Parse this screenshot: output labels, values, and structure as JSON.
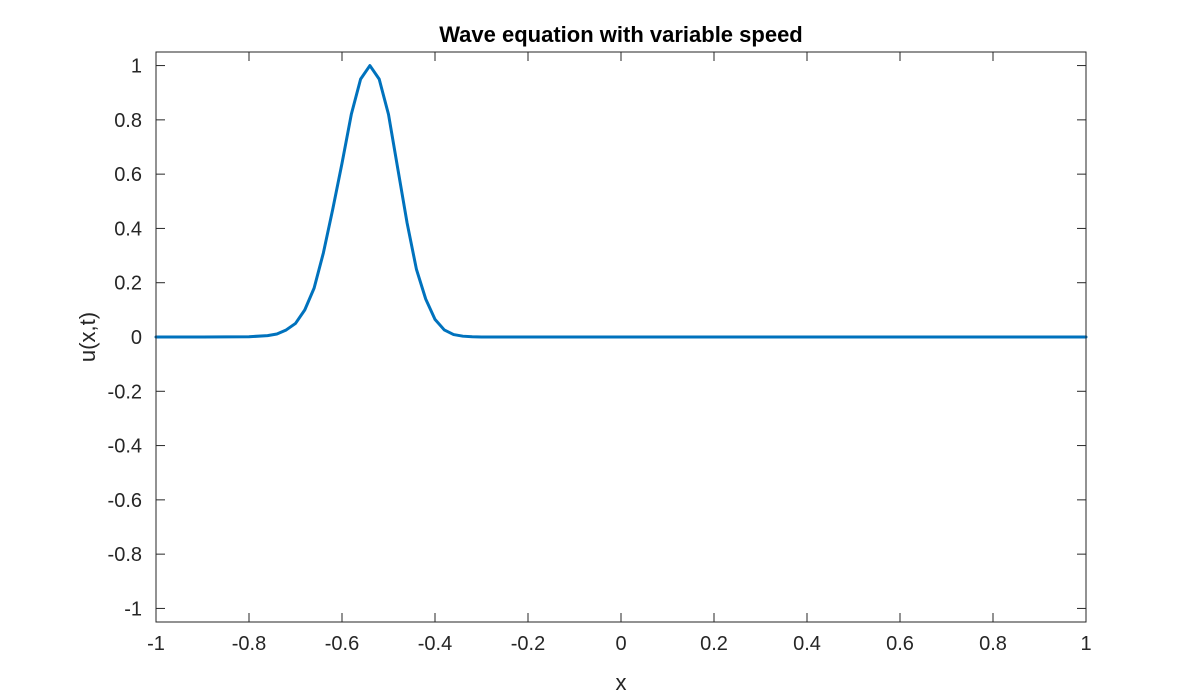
{
  "chart_data": {
    "type": "line",
    "title": "Wave equation with variable speed",
    "xlabel": "x",
    "ylabel": "u(x,t)",
    "xlim": [
      -1,
      1
    ],
    "ylim": [
      -1.05,
      1.05
    ],
    "xticks": [
      -1,
      -0.8,
      -0.6,
      -0.4,
      -0.2,
      0,
      0.2,
      0.4,
      0.6,
      0.8,
      1
    ],
    "xtick_labels": [
      "-1",
      "-0.8",
      "-0.6",
      "-0.4",
      "-0.2",
      "0",
      "0.2",
      "0.4",
      "0.6",
      "0.8",
      "1"
    ],
    "yticks": [
      -1,
      -0.8,
      -0.6,
      -0.4,
      -0.2,
      0,
      0.2,
      0.4,
      0.6,
      0.8,
      1
    ],
    "ytick_labels": [
      "-1",
      "-0.8",
      "-0.6",
      "-0.4",
      "-0.2",
      "0",
      "0.2",
      "0.4",
      "0.6",
      "0.8",
      "1"
    ],
    "grid": false,
    "line_color": "#0072bd",
    "series": [
      {
        "x": [
          -1.0,
          -0.9,
          -0.8,
          -0.76,
          -0.74,
          -0.72,
          -0.7,
          -0.68,
          -0.66,
          -0.64,
          -0.62,
          -0.6,
          -0.58,
          -0.56,
          -0.54,
          -0.52,
          -0.5,
          -0.48,
          -0.46,
          -0.44,
          -0.42,
          -0.4,
          -0.38,
          -0.36,
          -0.34,
          -0.32,
          -0.3,
          -0.28,
          -0.26,
          -0.24,
          -0.2,
          0.0,
          0.5,
          1.0
        ],
        "y": [
          0,
          0,
          0.001,
          0.005,
          0.011,
          0.026,
          0.05,
          0.1,
          0.18,
          0.31,
          0.47,
          0.64,
          0.82,
          0.95,
          1.0,
          0.95,
          0.82,
          0.62,
          0.42,
          0.25,
          0.14,
          0.065,
          0.026,
          0.009,
          0.003,
          0.001,
          0,
          0,
          0,
          0,
          0,
          0,
          0,
          0
        ]
      }
    ]
  }
}
